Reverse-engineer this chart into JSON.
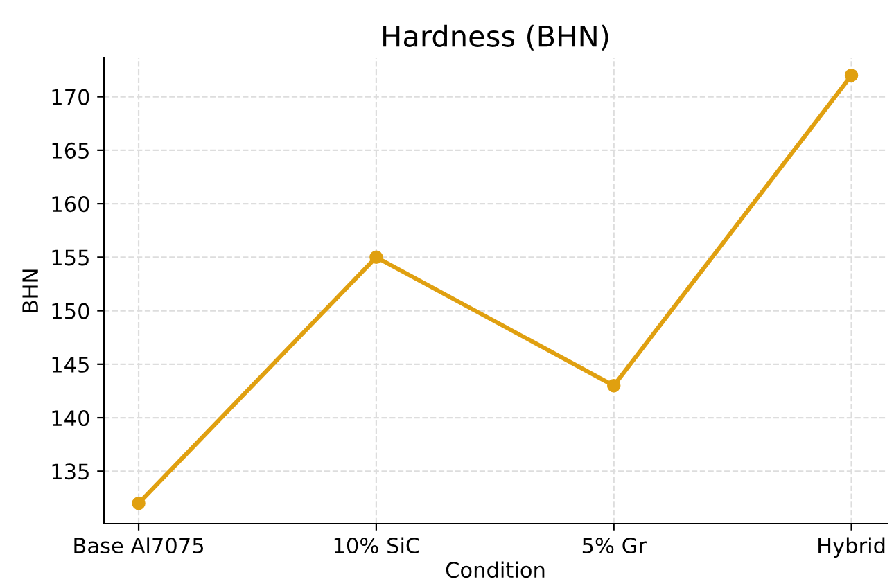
{
  "chart_data": {
    "type": "line",
    "title": "Hardness (BHN)",
    "xlabel": "Condition",
    "ylabel": "BHN",
    "categories": [
      "Base Al7075",
      "10% SiC",
      "5% Gr",
      "Hybrid"
    ],
    "series": [
      {
        "color": "#e0a010",
        "values": [
          132,
          155,
          143,
          172
        ]
      }
    ],
    "ylim": [
      130.1,
      173.6
    ],
    "yticks": [
      135,
      140,
      145,
      150,
      155,
      160,
      165,
      170
    ],
    "grid": true,
    "marker": "circle",
    "line_style": "solid"
  }
}
